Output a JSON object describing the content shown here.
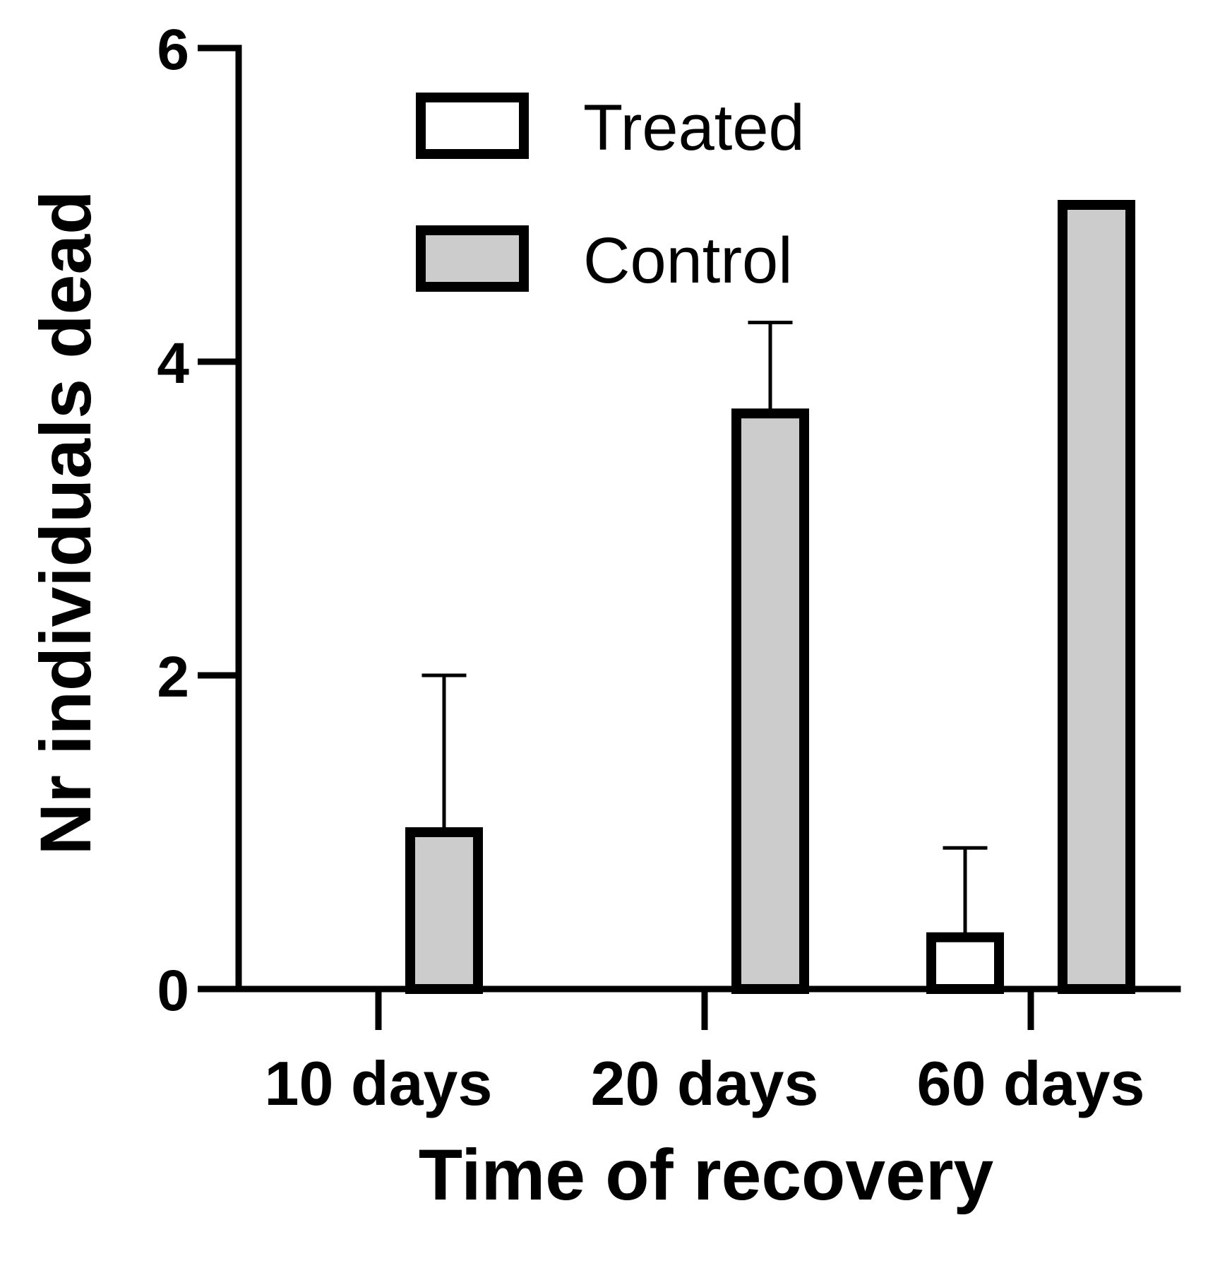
{
  "chart_data": {
    "type": "bar",
    "title": "",
    "xlabel": "Time of recovery",
    "ylabel": "Nr individuals dead",
    "categories": [
      "10 days",
      "20 days",
      "60 days"
    ],
    "ylim": [
      0,
      6
    ],
    "yticks": [
      0,
      2,
      4,
      6
    ],
    "grid": false,
    "legend_position": "top-center",
    "series": [
      {
        "name": "Treated",
        "fill": "#ffffff",
        "values": [
          0,
          0,
          0.33
        ],
        "error_upper": [
          0,
          0,
          0.9
        ]
      },
      {
        "name": "Control",
        "fill": "#cccccc",
        "values": [
          1,
          3.67,
          5
        ],
        "error_upper": [
          2,
          4.25,
          null
        ]
      }
    ]
  }
}
